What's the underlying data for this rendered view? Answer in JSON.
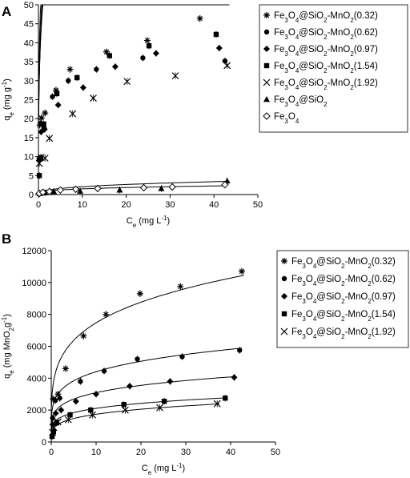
{
  "chart_data": [
    {
      "panel_label": "A",
      "type": "scatter",
      "xlabel_main": "C",
      "xlabel_sub": "e",
      "xlabel_unit_pre": " (mg L",
      "xlabel_unit_sup": "-1",
      "xlabel_unit_post": ")",
      "ylabel_main": "q",
      "ylabel_sub": "e",
      "ylabel_unit_pre": " (mg g",
      "ylabel_unit_sup": "-1",
      "ylabel_unit_post": ")",
      "xlim": [
        0,
        50
      ],
      "ylim": [
        0,
        50
      ],
      "xticks": [
        0,
        10,
        20,
        30,
        40,
        50
      ],
      "yticks": [
        0,
        5,
        10,
        15,
        20,
        25,
        30,
        35,
        40,
        45,
        50
      ],
      "legend_position": "right",
      "series": [
        {
          "name": "Fe3O4@SiO2-MnO2(0.32)",
          "marker": "asterisk",
          "x": [
            0.3,
            0.7,
            1.5,
            4,
            7.2,
            15.5,
            24.8,
            36.8
          ],
          "y": [
            18.3,
            20.2,
            21.5,
            27.5,
            33.0,
            37.6,
            40.6,
            46.4
          ],
          "fit": {
            "a": 61.5,
            "b": 0.3
          }
        },
        {
          "name": "Fe3O4@SiO2-MnO2(0.62)",
          "marker": "circle",
          "x": [
            0.2,
            0.5,
            1.3,
            3.2,
            6.8,
            13.2,
            23.8,
            42.5
          ],
          "y": [
            9.2,
            18.8,
            17.5,
            25.8,
            30.0,
            33.0,
            36.0,
            35.2
          ],
          "fit": {
            "a": 54.8,
            "b": 0.33
          }
        },
        {
          "name": "Fe3O4@SiO2-MnO2(0.97)",
          "marker": "diamond",
          "x": [
            0.2,
            0.6,
            1.4,
            4.5,
            10.2,
            17.5,
            26.8,
            41.2
          ],
          "y": [
            9.5,
            16.5,
            17.2,
            23.6,
            28.2,
            33.7,
            37.2,
            38.6
          ],
          "fit": {
            "a": 51.7,
            "b": 0.32
          }
        },
        {
          "name": "Fe3O4@SiO2-MnO2(1.54)",
          "marker": "square",
          "x": [
            0.2,
            0.5,
            1.2,
            4.2,
            8.8,
            16.2,
            25.2,
            40.5
          ],
          "y": [
            5.0,
            9.7,
            18.6,
            26.6,
            30.8,
            36.6,
            39.2,
            42.2
          ],
          "fit": {
            "a": 55.1,
            "b": 0.35
          }
        },
        {
          "name": "Fe3O4@SiO2-MnO2(1.92)",
          "marker": "x",
          "x": [
            0.2,
            0.6,
            1.5,
            2.5,
            7.8,
            12.5,
            20.2,
            31.2,
            43.0
          ],
          "y": [
            8.2,
            9.8,
            9.6,
            14.8,
            21.3,
            25.4,
            29.8,
            31.3,
            34.0
          ],
          "fit": {
            "a": 50.1,
            "b": 0.29
          }
        },
        {
          "name": "Fe3O4@SiO2",
          "marker": "triangle",
          "x": [
            0.3,
            1.5,
            3.5,
            9.5,
            18.5,
            28.0,
            43.0
          ],
          "y": [
            0.3,
            0.5,
            0.8,
            0.9,
            1.2,
            1.6,
            3.6
          ],
          "fit": {
            "a": 0.9,
            "b": 0.36
          }
        },
        {
          "name": "Fe3O4",
          "marker": "open-diamond",
          "x": [
            0.2,
            1.0,
            2.5,
            5.0,
            8.5,
            13.5,
            24.0,
            30.5,
            42.5
          ],
          "y": [
            0.3,
            0.6,
            0.8,
            1.2,
            1.4,
            1.6,
            1.8,
            2.0,
            2.6
          ],
          "fit": {
            "a": 0.75,
            "b": 0.3
          }
        }
      ]
    },
    {
      "panel_label": "B",
      "type": "scatter",
      "xlabel_main": "C",
      "xlabel_sub": "e",
      "xlabel_unit_pre": " (mg L",
      "xlabel_unit_sup": "-1",
      "xlabel_unit_post": ")",
      "ylabel_main": "q",
      "ylabel_sub": "e",
      "ylabel_unit_pre": " (mg MnO",
      "ylabel_unit_sub2": "2",
      "ylabel_unit_mid": "g",
      "ylabel_unit_sup": "-1",
      "ylabel_unit_post": ")",
      "xlim": [
        0,
        50
      ],
      "ylim": [
        0,
        12000
      ],
      "xticks": [
        0,
        10,
        20,
        30,
        40,
        50
      ],
      "yticks": [
        0,
        2000,
        4000,
        6000,
        8000,
        10000,
        12000
      ],
      "legend_position": "right",
      "series": [
        {
          "name": "Fe3O4@SiO2-MnO2(0.32)",
          "marker": "asterisk",
          "x": [
            0.4,
            1.5,
            3.2,
            7.2,
            12.2,
            19.8,
            28.8,
            42.5
          ],
          "y": [
            2700,
            3000,
            4600,
            6650,
            8000,
            9300,
            9750,
            10700
          ],
          "fit": {
            "a": 4400,
            "b": 0.23
          }
        },
        {
          "name": "Fe3O4@SiO2-MnO2(0.62)",
          "marker": "circle",
          "x": [
            0.3,
            0.9,
            1.9,
            6.5,
            11.8,
            19.2,
            29.2,
            42.0
          ],
          "y": [
            1500,
            2600,
            2750,
            3800,
            4450,
            5200,
            5350,
            5750
          ],
          "fit": {
            "a": 2780,
            "b": 0.2
          }
        },
        {
          "name": "Fe3O4@SiO2-MnO2(0.97)",
          "marker": "diamond",
          "x": [
            0.3,
            1.0,
            2.2,
            5.5,
            10.0,
            17.5,
            26.5,
            40.8
          ],
          "y": [
            1100,
            1800,
            2000,
            2550,
            3000,
            3500,
            3800,
            4050
          ],
          "fit": {
            "a": 1950,
            "b": 0.2
          }
        },
        {
          "name": "Fe3O4@SiO2-MnO2(1.54)",
          "marker": "square",
          "x": [
            0.2,
            0.5,
            1.2,
            4.2,
            8.8,
            16.2,
            25.2,
            38.8
          ],
          "y": [
            350,
            650,
            1200,
            1700,
            2000,
            2350,
            2550,
            2750
          ],
          "fit": {
            "a": 1330,
            "b": 0.2
          }
        },
        {
          "name": "Fe3O4@SiO2-MnO2(1.92)",
          "marker": "x",
          "x": [
            0.3,
            0.6,
            1.5,
            3.8,
            9.2,
            16.5,
            24.2,
            37.0
          ],
          "y": [
            600,
            900,
            1250,
            1400,
            1700,
            2000,
            2150,
            2400
          ],
          "fit": {
            "a": 1000,
            "b": 0.24
          }
        }
      ]
    }
  ]
}
